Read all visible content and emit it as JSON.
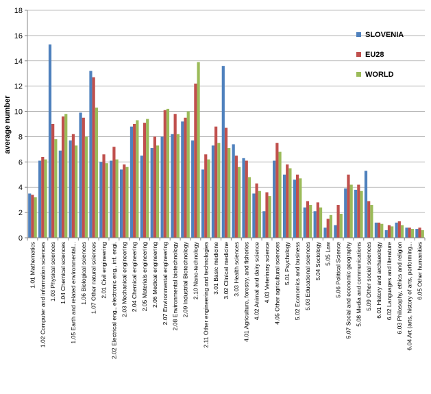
{
  "chart_data": {
    "type": "bar",
    "ylabel": "average number",
    "xlabel": "",
    "ylim": [
      0,
      18
    ],
    "yticks": [
      0,
      2,
      4,
      6,
      8,
      10,
      12,
      14,
      16,
      18
    ],
    "grid": true,
    "legend_position": "top-right",
    "categories": [
      "1.01 Mathematics",
      "1.02 Computer and information sciences",
      "1.03 Physical sciences",
      "1.04 Chemical sciences",
      "1.05 Earth and related environmental...",
      "1.06 Biological sciences",
      "1.07 Other natural sciences",
      "2.01 Civil engineering",
      "2.02 Electrical eng., electronic eng., inf. engi.",
      "2.03 Mechanical engineering",
      "2.04 Chemical engineering",
      "2.05 Materials engineering",
      "2.06 Medical engineering",
      "2.07 Environmental engineering",
      "2.08 Environmental biotechnology",
      "2.09 Industrial Biotechnology",
      "2.10 Nano-technology",
      "2.11 Other engineering and technologies",
      "3.01 Basic medicine",
      "3.02 Clinical medicine",
      "3.03 Health sciences",
      "4.01 Agriculture, forestry, and fisheries",
      "4.02 Animal and dairy science",
      "4.03 Veterinary science",
      "4.05 Other agricultural sciences",
      "5.01 Psychology",
      "5.02 Economics and business",
      "5.03 Educational sciences",
      "5.04 Sociology",
      "5.05 Law",
      "5.06 Political Science",
      "5.07 Social and economic geography",
      "5.08 Media and communications",
      "5.09 Other social sciences",
      "6.01 History and archaeology",
      "6.02 Languages and literature",
      "6.03 Philosophy, ethics and religion",
      "6.04 Art (arts, history of arts, performing...",
      "6.05 Other humanities"
    ],
    "series": [
      {
        "name": "SLOVENIA",
        "color": "#4f81bd",
        "values": [
          3.5,
          6.1,
          15.3,
          6.9,
          7.7,
          9.9,
          13.2,
          6.0,
          6.1,
          5.4,
          8.8,
          6.5,
          7.1,
          8.0,
          8.2,
          9.2,
          7.7,
          5.4,
          7.3,
          13.6,
          7.4,
          6.3,
          3.5,
          2.1,
          6.1,
          5.0,
          4.6,
          2.4,
          2.1,
          0.8,
          1.0,
          3.9,
          3.8,
          5.3,
          1.2,
          0.6,
          1.2,
          0.8,
          0.7
        ]
      },
      {
        "name": "EU28",
        "color": "#c0504d",
        "values": [
          3.4,
          6.4,
          9.0,
          9.6,
          8.2,
          9.5,
          12.7,
          6.6,
          7.2,
          5.8,
          9.0,
          9.1,
          8.0,
          10.1,
          9.8,
          9.5,
          12.2,
          6.6,
          8.8,
          8.7,
          6.5,
          6.1,
          4.3,
          3.6,
          7.5,
          5.8,
          5.0,
          2.9,
          2.8,
          1.5,
          2.6,
          5.0,
          4.2,
          2.9,
          1.2,
          1.0,
          1.3,
          0.8,
          0.8
        ]
      },
      {
        "name": "WORLD",
        "color": "#9bbb59",
        "values": [
          3.2,
          6.2,
          7.8,
          9.8,
          7.3,
          8.0,
          10.3,
          5.9,
          6.2,
          5.6,
          9.3,
          9.4,
          7.3,
          10.2,
          8.2,
          10.0,
          13.9,
          6.2,
          7.5,
          7.1,
          5.6,
          4.8,
          3.7,
          3.3,
          6.8,
          5.5,
          4.7,
          2.6,
          2.4,
          1.8,
          1.9,
          4.2,
          3.7,
          2.6,
          1.1,
          0.9,
          1.0,
          0.7,
          0.6
        ]
      }
    ]
  }
}
